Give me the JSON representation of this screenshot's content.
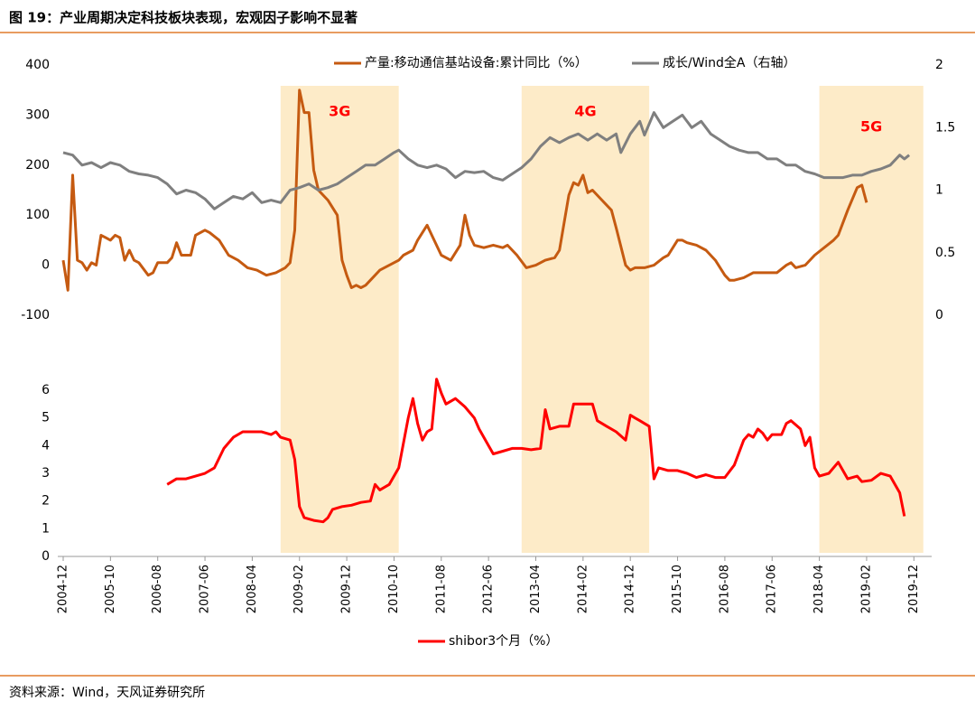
{
  "header": {
    "title": "图 19：产业周期决定科技板块表现，宏观因子影响不显著"
  },
  "footer": {
    "source": "资料来源：Wind，天风证券研究所"
  },
  "highlights": [
    {
      "label": "3G",
      "start": "2008-10",
      "end": "2010-11"
    },
    {
      "label": "4G",
      "start": "2013-01",
      "end": "2015-04"
    },
    {
      "label": "5G",
      "start": "2018-04",
      "end": "2020-02"
    }
  ],
  "chart_data": [
    {
      "type": "line",
      "xlim": [
        "2004-12",
        "2020-03"
      ],
      "ylim": [
        -100,
        400
      ],
      "yticks": [
        -100,
        0,
        100,
        200,
        300,
        400
      ],
      "y2lim": [
        0,
        2
      ],
      "y2ticks": [
        0,
        0.5,
        1,
        1.5,
        2
      ],
      "series": [
        {
          "name": "产量:移动通信基站设备:累计同比（%）",
          "color": "#c55a11",
          "x": [
            "2004-12",
            "2005-01",
            "2005-02",
            "2005-03",
            "2005-04",
            "2005-05",
            "2005-06",
            "2005-07",
            "2005-08",
            "2005-09",
            "2005-10",
            "2005-11",
            "2005-12",
            "2006-01",
            "2006-02",
            "2006-03",
            "2006-04",
            "2006-06",
            "2006-07",
            "2006-08",
            "2006-10",
            "2006-11",
            "2006-12",
            "2007-01",
            "2007-03",
            "2007-04",
            "2007-06",
            "2007-07",
            "2007-09",
            "2007-11",
            "2008-01",
            "2008-03",
            "2008-05",
            "2008-07",
            "2008-09",
            "2008-11",
            "2008-12",
            "2009-01",
            "2009-02",
            "2009-03",
            "2009-04",
            "2009-05",
            "2009-06",
            "2009-08",
            "2009-10",
            "2009-11",
            "2009-12",
            "2010-01",
            "2010-02",
            "2010-03",
            "2010-04",
            "2010-05",
            "2010-07",
            "2010-09",
            "2010-11",
            "2010-12",
            "2011-02",
            "2011-03",
            "2011-05",
            "2011-06",
            "2011-08",
            "2011-10",
            "2011-12",
            "2012-01",
            "2012-02",
            "2012-03",
            "2012-05",
            "2012-07",
            "2012-09",
            "2012-10",
            "2012-12",
            "2013-02",
            "2013-04",
            "2013-06",
            "2013-08",
            "2013-09",
            "2013-11",
            "2013-12",
            "2014-01",
            "2014-02",
            "2014-03",
            "2014-04",
            "2014-06",
            "2014-08",
            "2014-09",
            "2014-11",
            "2014-12",
            "2015-01",
            "2015-03",
            "2015-05",
            "2015-07",
            "2015-08",
            "2015-10",
            "2015-11",
            "2015-12",
            "2016-02",
            "2016-04",
            "2016-06",
            "2016-08",
            "2016-09",
            "2016-10",
            "2016-12",
            "2017-02",
            "2017-04",
            "2017-06",
            "2017-07",
            "2017-09",
            "2017-10",
            "2017-11",
            "2018-01",
            "2018-03",
            "2018-07",
            "2018-08",
            "2018-10",
            "2018-12",
            "2019-01",
            "2019-02"
          ],
          "values": [
            10,
            -50,
            180,
            10,
            5,
            -10,
            5,
            0,
            60,
            55,
            50,
            60,
            55,
            10,
            30,
            10,
            5,
            -20,
            -15,
            5,
            5,
            15,
            45,
            20,
            20,
            60,
            70,
            65,
            50,
            20,
            10,
            -5,
            -10,
            -20,
            -15,
            -5,
            5,
            70,
            350,
            305,
            305,
            190,
            150,
            130,
            100,
            10,
            -20,
            -45,
            -40,
            -45,
            -40,
            -30,
            -10,
            0,
            10,
            20,
            30,
            50,
            80,
            60,
            20,
            10,
            40,
            100,
            60,
            40,
            35,
            40,
            35,
            40,
            20,
            -5,
            0,
            10,
            15,
            30,
            140,
            165,
            160,
            180,
            145,
            150,
            130,
            110,
            75,
            0,
            -10,
            -5,
            -5,
            0,
            15,
            20,
            50,
            50,
            45,
            40,
            30,
            10,
            -20,
            -30,
            -30,
            -25,
            -15,
            -15,
            -15,
            -15,
            0,
            5,
            -5,
            0,
            20,
            50,
            60,
            110,
            155,
            160,
            125
          ]
        },
        {
          "name": "成长/Wind全A（右轴）",
          "color": "#7f7f7f",
          "axis": "y2",
          "x": [
            "2004-12",
            "2005-02",
            "2005-04",
            "2005-06",
            "2005-08",
            "2005-10",
            "2005-12",
            "2006-02",
            "2006-04",
            "2006-06",
            "2006-08",
            "2006-10",
            "2006-12",
            "2007-02",
            "2007-04",
            "2007-06",
            "2007-08",
            "2007-10",
            "2007-12",
            "2008-02",
            "2008-04",
            "2008-06",
            "2008-08",
            "2008-10",
            "2008-12",
            "2009-02",
            "2009-04",
            "2009-06",
            "2009-08",
            "2009-10",
            "2009-12",
            "2010-02",
            "2010-04",
            "2010-06",
            "2010-08",
            "2010-10",
            "2010-11",
            "2011-01",
            "2011-03",
            "2011-05",
            "2011-07",
            "2011-09",
            "2011-11",
            "2012-01",
            "2012-03",
            "2012-05",
            "2012-07",
            "2012-09",
            "2012-11",
            "2013-01",
            "2013-03",
            "2013-05",
            "2013-07",
            "2013-09",
            "2013-11",
            "2014-01",
            "2014-03",
            "2014-05",
            "2014-07",
            "2014-09",
            "2014-10",
            "2014-12",
            "2015-02",
            "2015-03",
            "2015-05",
            "2015-07",
            "2015-09",
            "2015-11",
            "2016-01",
            "2016-03",
            "2016-05",
            "2016-07",
            "2016-09",
            "2016-11",
            "2017-01",
            "2017-03",
            "2017-05",
            "2017-07",
            "2017-09",
            "2017-11",
            "2018-01",
            "2018-03",
            "2018-05",
            "2018-07",
            "2018-09",
            "2018-11",
            "2019-01",
            "2019-03",
            "2019-05",
            "2019-07",
            "2019-09",
            "2019-10",
            "2019-11"
          ],
          "values": [
            1.3,
            1.28,
            1.2,
            1.22,
            1.18,
            1.22,
            1.2,
            1.15,
            1.13,
            1.12,
            1.1,
            1.05,
            0.97,
            1.0,
            0.98,
            0.93,
            0.85,
            0.9,
            0.95,
            0.93,
            0.98,
            0.9,
            0.92,
            0.9,
            1.0,
            1.02,
            1.05,
            1.0,
            1.02,
            1.05,
            1.1,
            1.15,
            1.2,
            1.2,
            1.25,
            1.3,
            1.32,
            1.25,
            1.2,
            1.18,
            1.2,
            1.17,
            1.1,
            1.15,
            1.14,
            1.15,
            1.1,
            1.08,
            1.13,
            1.18,
            1.25,
            1.35,
            1.42,
            1.38,
            1.42,
            1.45,
            1.4,
            1.45,
            1.4,
            1.45,
            1.3,
            1.45,
            1.55,
            1.44,
            1.62,
            1.5,
            1.55,
            1.6,
            1.5,
            1.55,
            1.45,
            1.4,
            1.35,
            1.32,
            1.3,
            1.3,
            1.25,
            1.25,
            1.2,
            1.2,
            1.15,
            1.13,
            1.1,
            1.1,
            1.1,
            1.12,
            1.12,
            1.15,
            1.17,
            1.2,
            1.28,
            1.25,
            1.28
          ]
        }
      ]
    },
    {
      "type": "line",
      "xlim": [
        "2004-12",
        "2020-03"
      ],
      "ylim": [
        0,
        6.4
      ],
      "yticks": [
        0,
        1,
        2,
        3,
        4,
        5,
        6
      ],
      "xticks": [
        "2004-12",
        "2005-10",
        "2006-08",
        "2007-06",
        "2008-04",
        "2009-02",
        "2009-12",
        "2010-10",
        "2011-08",
        "2012-06",
        "2013-04",
        "2014-02",
        "2014-12",
        "2015-10",
        "2016-08",
        "2017-06",
        "2018-04",
        "2019-02",
        "2019-12"
      ],
      "series": [
        {
          "name": "shibor3个月（%）",
          "color": "#ff0000",
          "x": [
            "2006-10",
            "2006-12",
            "2007-02",
            "2007-04",
            "2007-06",
            "2007-08",
            "2007-10",
            "2007-12",
            "2008-02",
            "2008-04",
            "2008-06",
            "2008-08",
            "2008-09",
            "2008-10",
            "2008-12",
            "2009-01",
            "2009-02",
            "2009-03",
            "2009-05",
            "2009-07",
            "2009-08",
            "2009-09",
            "2009-11",
            "2010-01",
            "2010-03",
            "2010-05",
            "2010-06",
            "2010-07",
            "2010-09",
            "2010-11",
            "2011-01",
            "2011-02",
            "2011-03",
            "2011-04",
            "2011-05",
            "2011-06",
            "2011-07",
            "2011-08",
            "2011-09",
            "2011-11",
            "2012-01",
            "2012-03",
            "2012-04",
            "2012-06",
            "2012-07",
            "2012-09",
            "2012-11",
            "2013-01",
            "2013-03",
            "2013-05",
            "2013-06",
            "2013-07",
            "2013-09",
            "2013-11",
            "2013-12",
            "2014-02",
            "2014-04",
            "2014-05",
            "2014-07",
            "2014-09",
            "2014-11",
            "2014-12",
            "2015-01",
            "2015-02",
            "2015-04",
            "2015-05",
            "2015-06",
            "2015-08",
            "2015-10",
            "2015-12",
            "2016-02",
            "2016-04",
            "2016-06",
            "2016-08",
            "2016-10",
            "2016-12",
            "2017-01",
            "2017-02",
            "2017-03",
            "2017-04",
            "2017-05",
            "2017-06",
            "2017-08",
            "2017-09",
            "2017-10",
            "2017-12",
            "2018-01",
            "2018-02",
            "2018-03",
            "2018-04",
            "2018-06",
            "2018-08",
            "2018-10",
            "2018-12",
            "2019-01",
            "2019-03",
            "2019-05",
            "2019-07",
            "2019-09",
            "2019-10"
          ],
          "values": [
            2.6,
            2.8,
            2.8,
            2.9,
            3.0,
            3.2,
            3.9,
            4.3,
            4.5,
            4.5,
            4.5,
            4.4,
            4.5,
            4.3,
            4.2,
            3.5,
            1.8,
            1.4,
            1.3,
            1.25,
            1.4,
            1.7,
            1.8,
            1.85,
            1.95,
            2.0,
            2.6,
            2.4,
            2.6,
            3.2,
            5.0,
            5.7,
            4.8,
            4.2,
            4.5,
            4.6,
            6.4,
            5.9,
            5.5,
            5.7,
            5.4,
            5.0,
            4.6,
            4.0,
            3.7,
            3.8,
            3.9,
            3.9,
            3.85,
            3.9,
            5.3,
            4.6,
            4.7,
            4.7,
            5.5,
            5.5,
            5.5,
            4.9,
            4.7,
            4.5,
            4.2,
            5.1,
            5.0,
            4.9,
            4.7,
            2.8,
            3.2,
            3.1,
            3.1,
            3.0,
            2.85,
            2.95,
            2.85,
            2.85,
            3.3,
            4.2,
            4.4,
            4.3,
            4.6,
            4.45,
            4.2,
            4.4,
            4.4,
            4.8,
            4.9,
            4.6,
            4.0,
            4.3,
            3.2,
            2.9,
            3.0,
            3.4,
            2.8,
            2.9,
            2.7,
            2.75,
            3.0,
            2.9,
            2.3,
            1.45
          ]
        }
      ]
    }
  ]
}
